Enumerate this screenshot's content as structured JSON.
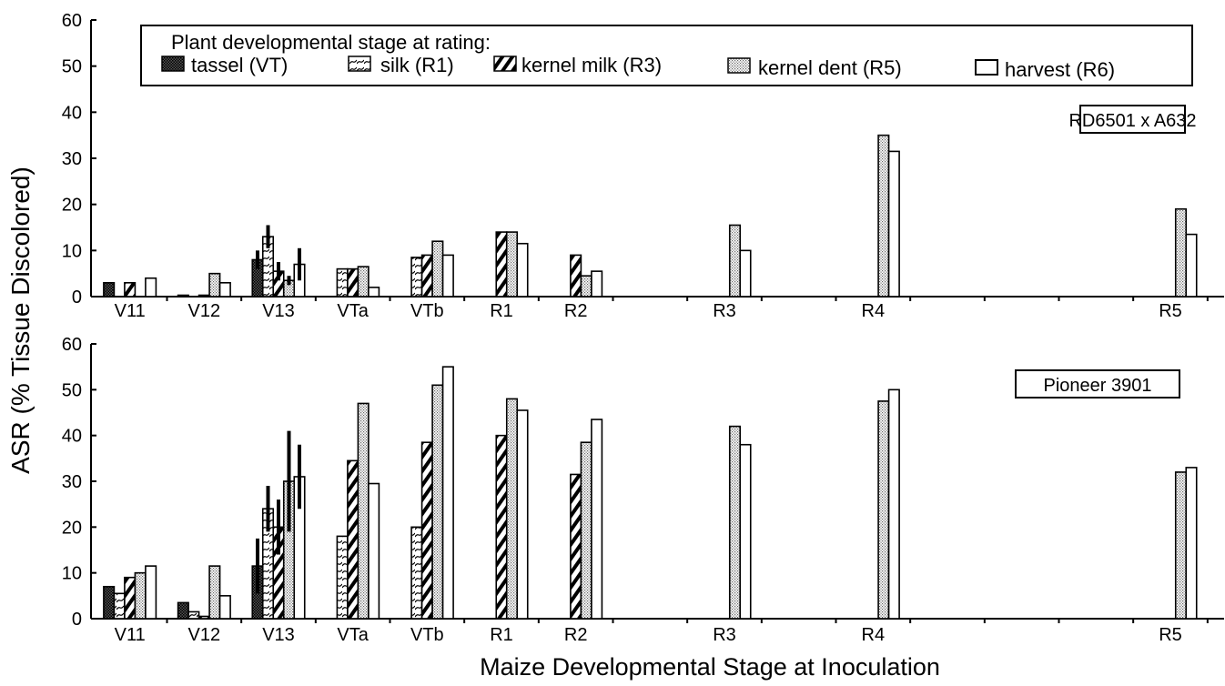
{
  "figure": {
    "ylabel": "ASR (% Tissue Discolored)",
    "xlabel": "Maize Developmental Stage at Inoculation"
  },
  "legend": {
    "title": "Plant developmental stage at rating:",
    "items": [
      {
        "label": "tassel (VT)",
        "pattern": "dark-dots"
      },
      {
        "label": "silk (R1)",
        "pattern": "light-wave-hatch"
      },
      {
        "label": "kernel milk (R3)",
        "pattern": "bold-diagonal-hatch"
      },
      {
        "label": "kernel dent (R5)",
        "pattern": "light-dots"
      },
      {
        "label": "harvest (R6)",
        "pattern": "white"
      }
    ]
  },
  "chart_data": [
    {
      "type": "bar",
      "title": "RD6501 x A632",
      "ylim": [
        0,
        60
      ],
      "yticks": [
        0,
        10,
        20,
        30,
        40,
        50,
        60
      ],
      "grid": false,
      "legend_position": "top",
      "categories": [
        "V11",
        "V12",
        "V13",
        "VTa",
        "VTb",
        "R1",
        "R2",
        "R3",
        "R4",
        "R5"
      ],
      "x_positions": [
        1,
        2,
        3,
        4,
        5,
        6,
        7,
        9,
        11,
        15
      ],
      "xlim": [
        0.6,
        15.6
      ],
      "series": [
        {
          "name": "tassel (VT)",
          "values": [
            3,
            0.3,
            8,
            null,
            null,
            null,
            null,
            null,
            null,
            null
          ],
          "err": [
            0,
            0,
            2,
            null,
            null,
            null,
            null,
            null,
            null,
            null
          ]
        },
        {
          "name": "silk (R1)",
          "values": [
            null,
            null,
            13,
            6,
            8.5,
            null,
            null,
            null,
            null,
            null
          ],
          "err": [
            null,
            null,
            2.5,
            0,
            0,
            null,
            null,
            null,
            null,
            null
          ]
        },
        {
          "name": "kernel milk (R3)",
          "values": [
            3,
            0.3,
            5.5,
            6,
            9,
            14,
            9,
            null,
            null,
            null
          ],
          "err": [
            0,
            0,
            2,
            0,
            0,
            0,
            0,
            null,
            null,
            null
          ]
        },
        {
          "name": "kernel dent (R5)",
          "values": [
            null,
            5,
            3.5,
            6.5,
            12,
            14,
            4.5,
            15.5,
            35,
            19
          ],
          "err": [
            null,
            0,
            1,
            0,
            0,
            0,
            0,
            0,
            0,
            0
          ]
        },
        {
          "name": "harvest (R6)",
          "values": [
            4,
            3,
            7,
            2,
            9,
            11.5,
            5.5,
            10,
            31.5,
            13.5
          ],
          "err": [
            0,
            0,
            3.5,
            0,
            0,
            0,
            0,
            0,
            0,
            0
          ]
        }
      ]
    },
    {
      "type": "bar",
      "title": "Pioneer 3901",
      "ylim": [
        0,
        60
      ],
      "yticks": [
        0,
        10,
        20,
        30,
        40,
        50,
        60
      ],
      "grid": false,
      "categories": [
        "V11",
        "V12",
        "V13",
        "VTa",
        "VTb",
        "R1",
        "R2",
        "R3",
        "R4",
        "R5"
      ],
      "x_positions": [
        1,
        2,
        3,
        4,
        5,
        6,
        7,
        9,
        11,
        15
      ],
      "xlim": [
        0.6,
        15.6
      ],
      "series": [
        {
          "name": "tassel (VT)",
          "values": [
            7,
            3.5,
            11.5,
            null,
            null,
            null,
            null,
            null,
            null,
            null
          ],
          "err": [
            0,
            0,
            6,
            null,
            null,
            null,
            null,
            null,
            null,
            null
          ]
        },
        {
          "name": "silk (R1)",
          "values": [
            5.5,
            1.5,
            24,
            18,
            20,
            null,
            null,
            null,
            null,
            null
          ],
          "err": [
            0,
            0,
            5,
            0,
            0,
            null,
            null,
            null,
            null,
            null
          ]
        },
        {
          "name": "kernel milk (R3)",
          "values": [
            9,
            0.5,
            20,
            34.5,
            38.5,
            40,
            31.5,
            null,
            null,
            null
          ],
          "err": [
            0,
            0,
            6,
            0,
            0,
            0,
            0,
            null,
            null,
            null
          ]
        },
        {
          "name": "kernel dent (R5)",
          "values": [
            10,
            11.5,
            30,
            47,
            51,
            48,
            38.5,
            42,
            47.5,
            32
          ],
          "err": [
            0,
            0,
            11,
            0,
            0,
            0,
            0,
            0,
            0,
            0
          ]
        },
        {
          "name": "harvest (R6)",
          "values": [
            11.5,
            5,
            31,
            29.5,
            55,
            45.5,
            43.5,
            38,
            50,
            33
          ],
          "err": [
            0,
            0,
            7,
            0,
            0,
            0,
            0,
            0,
            0,
            0
          ]
        }
      ]
    }
  ]
}
